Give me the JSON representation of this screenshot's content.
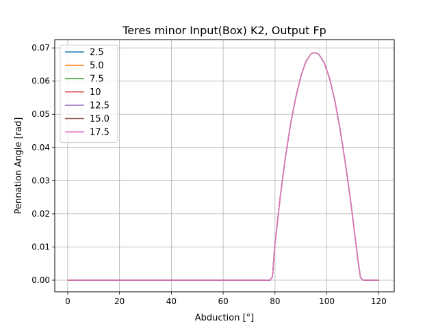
{
  "chart_data": {
    "type": "line",
    "title": "Teres minor Input(Box) K2, Output Fp",
    "xlabel": "Abduction [°]",
    "ylabel": "Pennation Angle [rad]",
    "xlim": [
      -5,
      126
    ],
    "ylim": [
      -0.0035,
      0.0725
    ],
    "xticks": [
      0,
      20,
      40,
      60,
      80,
      100,
      120
    ],
    "xtick_labels": [
      "0",
      "20",
      "40",
      "60",
      "80",
      "100",
      "120"
    ],
    "yticks": [
      0.0,
      0.01,
      0.02,
      0.03,
      0.04,
      0.05,
      0.06,
      0.07
    ],
    "ytick_labels": [
      "0.00",
      "0.01",
      "0.02",
      "0.03",
      "0.04",
      "0.05",
      "0.06",
      "0.07"
    ],
    "grid": true,
    "legend_position": "upper-left",
    "x": [
      0,
      10,
      20,
      30,
      40,
      50,
      60,
      70,
      78,
      79,
      80,
      82,
      84,
      86,
      88,
      90,
      92,
      94,
      95.5,
      97,
      99,
      101,
      103,
      105,
      107,
      109,
      111,
      112,
      113,
      114,
      116,
      118,
      120
    ],
    "series": [
      {
        "name": "2.5",
        "color": "#1f77b4",
        "values": [
          0,
          0,
          0,
          0,
          0,
          0,
          0,
          0,
          0,
          0.001,
          0.011,
          0.025,
          0.037,
          0.047,
          0.055,
          0.0615,
          0.066,
          0.0683,
          0.0686,
          0.068,
          0.0655,
          0.061,
          0.0545,
          0.046,
          0.036,
          0.025,
          0.0125,
          0.006,
          0.0008,
          0,
          0,
          0,
          0
        ]
      },
      {
        "name": "5.0",
        "color": "#ff7f0e",
        "values": [
          0,
          0,
          0,
          0,
          0,
          0,
          0,
          0,
          0,
          0.001,
          0.011,
          0.025,
          0.037,
          0.047,
          0.055,
          0.0615,
          0.066,
          0.0683,
          0.0686,
          0.068,
          0.0655,
          0.061,
          0.0545,
          0.046,
          0.036,
          0.025,
          0.0125,
          0.006,
          0.0008,
          0,
          0,
          0,
          0
        ]
      },
      {
        "name": "7.5",
        "color": "#2ca02c",
        "values": [
          0,
          0,
          0,
          0,
          0,
          0,
          0,
          0,
          0,
          0.001,
          0.011,
          0.025,
          0.037,
          0.047,
          0.055,
          0.0615,
          0.066,
          0.0683,
          0.0686,
          0.068,
          0.0655,
          0.061,
          0.0545,
          0.046,
          0.036,
          0.025,
          0.0125,
          0.006,
          0.0008,
          0,
          0,
          0,
          0
        ]
      },
      {
        "name": "10",
        "color": "#d62728",
        "values": [
          0,
          0,
          0,
          0,
          0,
          0,
          0,
          0,
          0,
          0.001,
          0.011,
          0.025,
          0.037,
          0.047,
          0.055,
          0.0615,
          0.066,
          0.0683,
          0.0686,
          0.068,
          0.0655,
          0.061,
          0.0545,
          0.046,
          0.036,
          0.025,
          0.0125,
          0.006,
          0.0008,
          0,
          0,
          0,
          0
        ]
      },
      {
        "name": "12.5",
        "color": "#9467bd",
        "values": [
          0,
          0,
          0,
          0,
          0,
          0,
          0,
          0,
          0,
          0.001,
          0.011,
          0.025,
          0.037,
          0.047,
          0.055,
          0.0615,
          0.066,
          0.0683,
          0.0686,
          0.068,
          0.0655,
          0.061,
          0.0545,
          0.046,
          0.036,
          0.025,
          0.0125,
          0.006,
          0.0008,
          0,
          0,
          0,
          0
        ]
      },
      {
        "name": "15.0",
        "color": "#8c564b",
        "values": [
          0,
          0,
          0,
          0,
          0,
          0,
          0,
          0,
          0,
          0.001,
          0.011,
          0.025,
          0.037,
          0.047,
          0.055,
          0.0615,
          0.066,
          0.0683,
          0.0686,
          0.068,
          0.0655,
          0.061,
          0.0545,
          0.046,
          0.036,
          0.025,
          0.0125,
          0.006,
          0.0008,
          0,
          0,
          0,
          0
        ]
      },
      {
        "name": "17.5",
        "color": "#e377c2",
        "values": [
          0,
          0,
          0,
          0,
          0,
          0,
          0,
          0,
          0,
          0.001,
          0.011,
          0.025,
          0.037,
          0.047,
          0.055,
          0.0615,
          0.066,
          0.0683,
          0.0686,
          0.068,
          0.0655,
          0.061,
          0.0545,
          0.046,
          0.036,
          0.025,
          0.0125,
          0.006,
          0.0008,
          0,
          0,
          0,
          0
        ]
      }
    ]
  }
}
